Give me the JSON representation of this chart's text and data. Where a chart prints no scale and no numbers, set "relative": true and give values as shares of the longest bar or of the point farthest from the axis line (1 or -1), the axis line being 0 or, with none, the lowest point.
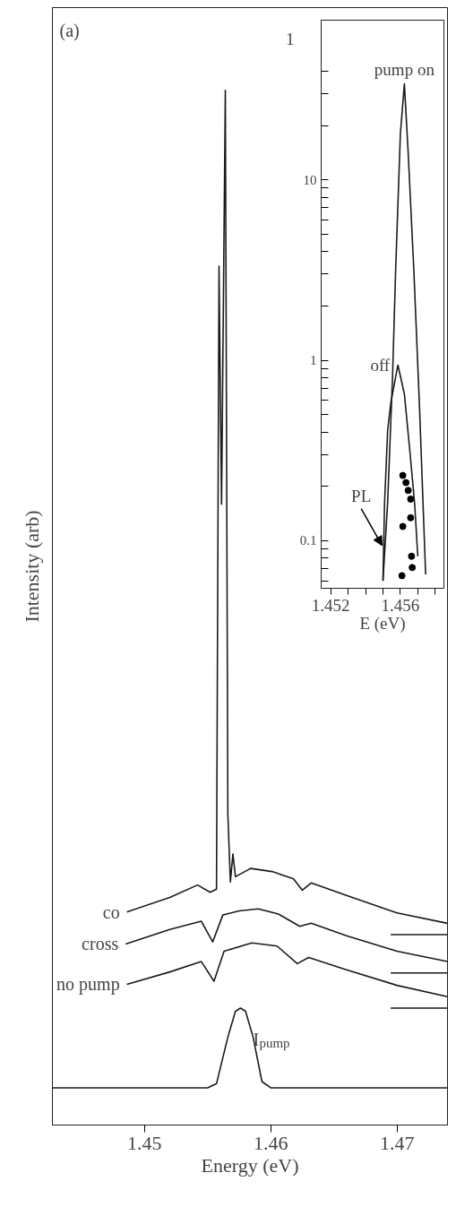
{
  "chart_data": [
    {
      "type": "line",
      "relative": true,
      "xlabel": "Energy (eV)",
      "ylabel": "Intensity (arb)",
      "xlim": [
        1.4427,
        1.474
      ],
      "xticks": [
        1.45,
        1.46,
        1.47
      ],
      "grid": false,
      "tick_labels": "x",
      "annotations": [
        "(a)"
      ],
      "series": [
        {
          "name": "co",
          "color": "#1a1a1a",
          "x": [
            1.4486,
            1.452,
            1.4542,
            1.4552,
            1.4557,
            1.4559,
            1.4561,
            1.4564,
            1.4566,
            1.4568,
            1.457,
            1.4572,
            1.4584,
            1.4601,
            1.4618,
            1.4625,
            1.4632,
            1.466,
            1.47,
            1.474
          ],
          "values": [
            0.206,
            0.22,
            0.232,
            0.225,
            0.228,
            0.83,
            0.6,
            1.0,
            0.3,
            0.235,
            0.262,
            0.24,
            0.248,
            0.245,
            0.238,
            0.227,
            0.234,
            0.222,
            0.205,
            0.195
          ]
        },
        {
          "name": "cross",
          "color": "#1a1a1a",
          "x": [
            1.4485,
            1.452,
            1.4545,
            1.4554,
            1.4562,
            1.4575,
            1.459,
            1.4606,
            1.4623,
            1.4632,
            1.466,
            1.47,
            1.474
          ],
          "values": [
            0.175,
            0.189,
            0.197,
            0.177,
            0.203,
            0.207,
            0.209,
            0.204,
            0.192,
            0.195,
            0.183,
            0.168,
            0.158
          ]
        },
        {
          "name": "no pump",
          "color": "#1a1a1a",
          "x": [
            1.4486,
            1.452,
            1.4545,
            1.4555,
            1.4563,
            1.4585,
            1.4605,
            1.4621,
            1.463,
            1.466,
            1.47,
            1.474
          ],
          "values": [
            0.136,
            0.148,
            0.158,
            0.139,
            0.168,
            0.176,
            0.173,
            0.156,
            0.162,
            0.15,
            0.135,
            0.124
          ]
        },
        {
          "name": "I$_{pump}$",
          "color": "#1a1a1a",
          "x": [
            1.4427,
            1.455,
            1.4557,
            1.4566,
            1.4572,
            1.4576,
            1.458,
            1.4586,
            1.4593,
            1.46,
            1.474
          ],
          "values": [
            0.036,
            0.036,
            0.04,
            0.085,
            0.11,
            0.113,
            0.11,
            0.085,
            0.042,
            0.036,
            0.036
          ]
        },
        {
          "color": "#1a1a1a",
          "x": [
            1.4695,
            1.474
          ],
          "values": [
            0.184,
            0.184
          ]
        },
        {
          "color": "#1a1a1a",
          "x": [
            1.4695,
            1.474
          ],
          "values": [
            0.147,
            0.147
          ]
        },
        {
          "color": "#1a1a1a",
          "x": [
            1.4695,
            1.474
          ],
          "values": [
            0.113,
            0.113
          ]
        }
      ]
    },
    {
      "type": "line",
      "log": "y",
      "xlabel": "E (eV)",
      "xlim": [
        1.45145,
        1.4585
      ],
      "ylim": [
        0.0545,
        76.7
      ],
      "grid": false,
      "xticks": [
        1.452,
        {
          "value": 1.453,
          "label": null
        },
        {
          "value": 1.454,
          "label": null
        },
        {
          "value": 1.455,
          "label": null
        },
        1.456,
        {
          "value": 1.457,
          "label": null
        },
        {
          "value": 1.458,
          "label": null
        }
      ],
      "yticks": [
        {
          "value": 0.06,
          "label": null
        },
        {
          "value": 0.07,
          "label": null
        },
        {
          "value": 0.08,
          "label": null
        },
        {
          "value": 0.09,
          "label": null
        },
        0.1,
        {
          "value": 0.2,
          "label": null
        },
        {
          "value": 0.3,
          "label": null
        },
        {
          "value": 0.4,
          "label": null
        },
        {
          "value": 0.5,
          "label": null
        },
        {
          "value": 0.6,
          "label": null
        },
        {
          "value": 0.7,
          "label": null
        },
        {
          "value": 0.8,
          "label": null
        },
        {
          "value": 0.9,
          "label": null
        },
        1,
        {
          "value": 2,
          "label": null
        },
        {
          "value": 3,
          "label": null
        },
        {
          "value": 4,
          "label": null
        },
        {
          "value": 5,
          "label": null
        },
        {
          "value": 6,
          "label": null
        },
        {
          "value": 7,
          "label": null
        },
        {
          "value": 8,
          "label": null
        },
        {
          "value": 9,
          "label": null
        },
        10,
        {
          "value": 20,
          "label": null
        },
        {
          "value": 30,
          "label": null
        },
        {
          "value": 40,
          "label": null
        }
      ],
      "annotations": [
        "1",
        {
          "text": "PL",
          "x": 1.45495,
          "y": 0.094
        }
      ],
      "series": [
        {
          "name": "pump on",
          "color": "#1a1a1a",
          "x": [
            1.455,
            1.45527,
            1.45555,
            1.45573,
            1.456,
            1.45623,
            1.45645,
            1.45677,
            1.45709,
            1.45745
          ],
          "values": [
            0.06,
            0.164,
            0.81,
            3.2,
            18,
            34,
            14,
            3.2,
            0.58,
            0.065
          ]
        },
        {
          "name": "off",
          "color": "#1a1a1a",
          "x": [
            1.455,
            1.45509,
            1.45527,
            1.45545,
            1.45573,
            1.45586,
            1.45623,
            1.45655,
            1.45682,
            1.457
          ],
          "values": [
            0.06,
            0.16,
            0.41,
            0.58,
            0.81,
            0.94,
            0.65,
            0.31,
            0.16,
            0.082
          ]
        },
        {
          "type": "scatter",
          "marker": "circle",
          "color": "#000000",
          "x": [
            1.45614,
            1.45632,
            1.45645,
            1.45659,
            1.45659,
            1.45614,
            1.45664,
            1.45668,
            1.45609
          ],
          "values": [
            0.23,
            0.21,
            0.19,
            0.17,
            0.134,
            0.12,
            0.082,
            0.071,
            0.064
          ]
        }
      ]
    }
  ]
}
